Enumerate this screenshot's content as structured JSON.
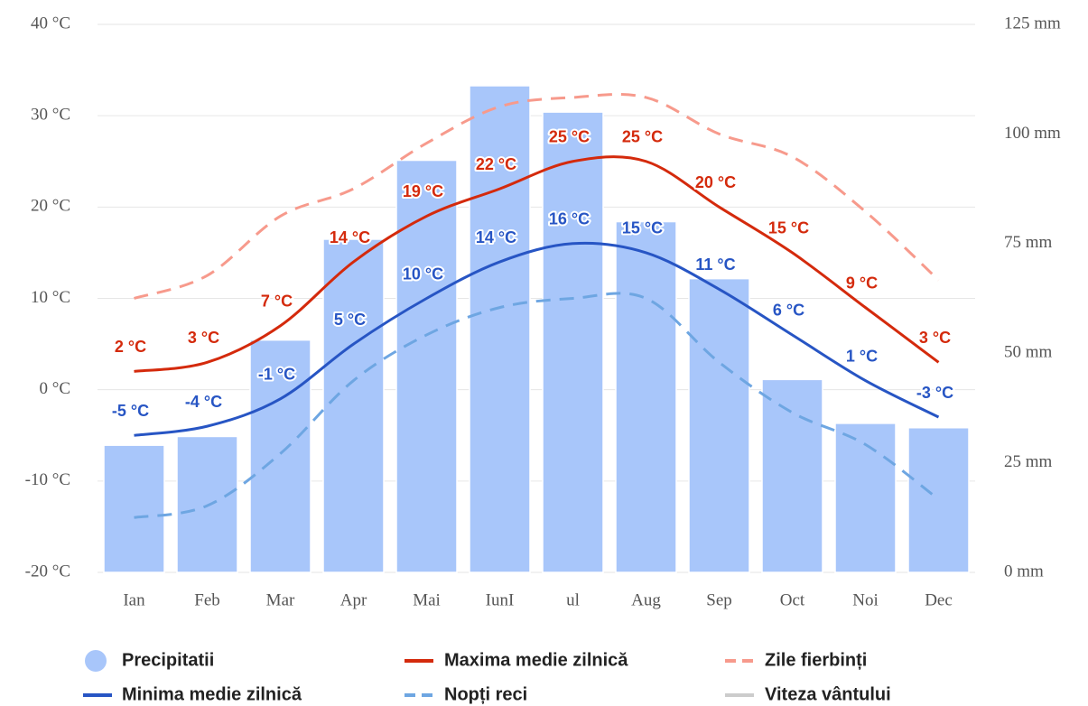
{
  "chart_data": {
    "type": "combo",
    "categories": [
      "Ian",
      "Feb",
      "Mar",
      "Apr",
      "Mai",
      "IunI",
      "ul",
      "Aug",
      "Sep",
      "Oct",
      "Noi",
      "Dec"
    ],
    "ylim": [
      -20,
      40
    ],
    "yticks": [
      {
        "value": -20,
        "label": "-20 °C"
      },
      {
        "value": -10,
        "label": "-10 °C"
      },
      {
        "value": 0,
        "label": "0 °C"
      },
      {
        "value": 10,
        "label": "10 °C"
      },
      {
        "value": 20,
        "label": "20 °C"
      },
      {
        "value": 30,
        "label": "30 °C"
      },
      {
        "value": 40,
        "label": "40 °C"
      }
    ],
    "y2lim": [
      0,
      125
    ],
    "y2ticks": [
      {
        "value": 0,
        "label": "0 mm"
      },
      {
        "value": 25,
        "label": "25 mm"
      },
      {
        "value": 50,
        "label": "50 mm"
      },
      {
        "value": 75,
        "label": "75 mm"
      },
      {
        "value": 100,
        "label": "100 mm"
      },
      {
        "value": 125,
        "label": "125 mm"
      }
    ],
    "grid": true,
    "series": [
      {
        "name": "Precipitatii",
        "type": "bar",
        "axis": "y2",
        "color": "#a8c6fa",
        "values": [
          29,
          31,
          53,
          76,
          94,
          111,
          105,
          80,
          67,
          44,
          34,
          33
        ]
      },
      {
        "name": "Maxima medie zilnică",
        "type": "line",
        "color": "#d42a0c",
        "values": [
          2,
          3,
          7,
          14,
          19,
          22,
          25,
          25,
          20,
          15,
          9,
          3
        ],
        "value_labels": [
          "2 °C",
          "3 °C",
          "7 °C",
          "14 °C",
          "19 °C",
          "22 °C",
          "25 °C",
          "25 °C",
          "20 °C",
          "15 °C",
          "9 °C",
          "3 °C"
        ]
      },
      {
        "name": "Zile fierbinți",
        "type": "line",
        "dashed": true,
        "color": "#f79a8c",
        "values": [
          10,
          12.5,
          19,
          22,
          27,
          31,
          32,
          32,
          28,
          25.5,
          19.5,
          12
        ]
      },
      {
        "name": "Minima medie zilnică",
        "type": "line",
        "color": "#2755c4",
        "values": [
          -5,
          -4,
          -1,
          5,
          10,
          14,
          16,
          15,
          11,
          6,
          1,
          -3
        ],
        "value_labels": [
          "-5 °C",
          "-4 °C",
          "-1 °C",
          "5 °C",
          "10 °C",
          "14 °C",
          "16 °C",
          "15 °C",
          "11 °C",
          "6 °C",
          "1 °C",
          "-3 °C"
        ]
      },
      {
        "name": "Nopți reci",
        "type": "line",
        "dashed": true,
        "color": "#6ea6e2",
        "values": [
          -14,
          -12.7,
          -7,
          1,
          6,
          9,
          10,
          10,
          3,
          -2.5,
          -6,
          -12
        ]
      }
    ],
    "inactive_series": [
      {
        "name": "Viteza vântului",
        "color": "#cccccc"
      }
    ]
  }
}
